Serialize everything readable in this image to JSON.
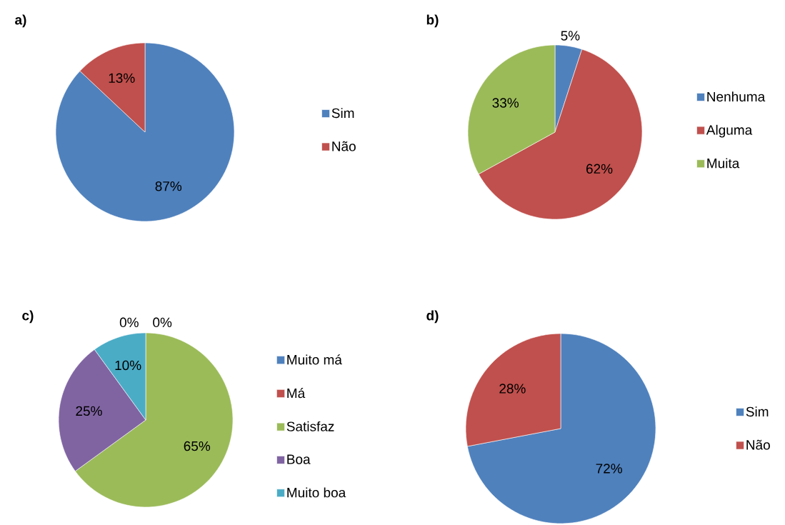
{
  "chart_data": [
    {
      "type": "pie",
      "title": "a)",
      "categories": [
        "Sim",
        "Não"
      ],
      "values": [
        87,
        13
      ],
      "colors": [
        "#4f81bd",
        "#c0504d"
      ],
      "value_labels": [
        "87%",
        "13%"
      ],
      "legend": "right"
    },
    {
      "type": "pie",
      "title": "b)",
      "categories": [
        "Nenhuma",
        "Alguma",
        "Muita"
      ],
      "values": [
        5,
        62,
        33
      ],
      "colors": [
        "#4f81bd",
        "#c0504d",
        "#9bbb59"
      ],
      "value_labels": [
        "5%",
        "62%",
        "33%"
      ],
      "legend": "right"
    },
    {
      "type": "pie",
      "title": "c)",
      "categories": [
        "Muito má",
        "Má",
        "Satisfaz",
        "Boa",
        "Muito boa"
      ],
      "values": [
        0,
        0,
        65,
        25,
        10
      ],
      "colors": [
        "#4f81bd",
        "#c0504d",
        "#9bbb59",
        "#8064a2",
        "#4bacc6"
      ],
      "value_labels": [
        "0%",
        "0%",
        "65%",
        "25%",
        "10%"
      ],
      "legend": "right"
    },
    {
      "type": "pie",
      "title": "d)",
      "categories": [
        "Sim",
        "Não"
      ],
      "values": [
        72,
        28
      ],
      "colors": [
        "#4f81bd",
        "#c0504d"
      ],
      "value_labels": [
        "72%",
        "28%"
      ],
      "legend": "right"
    }
  ]
}
